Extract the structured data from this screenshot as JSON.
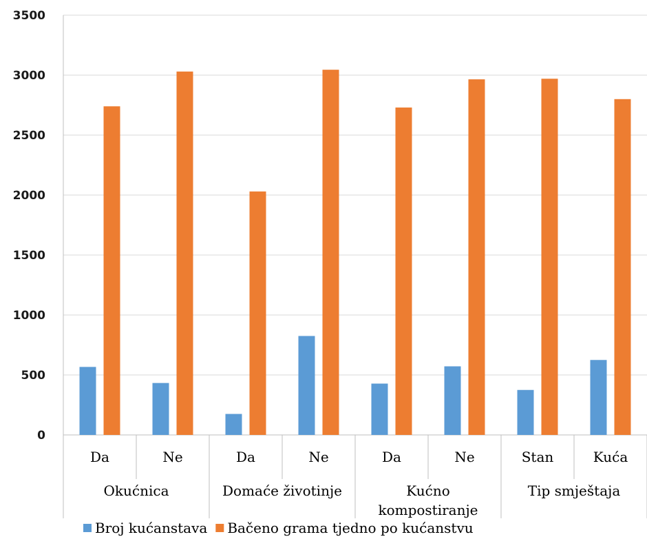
{
  "chart_data": {
    "type": "bar",
    "title": "",
    "xlabel": "",
    "ylabel": "",
    "ylim": [
      0,
      3500
    ],
    "yticks": [
      0,
      500,
      1000,
      1500,
      2000,
      2500,
      3000,
      3500
    ],
    "grid": true,
    "legend_position": "bottom",
    "categories": [
      "Da",
      "Ne",
      "Da",
      "Ne",
      "Da",
      "Ne",
      "Stan",
      "Kuća"
    ],
    "groups": [
      {
        "label": "Okućnica",
        "lines": [
          "Okućnica"
        ],
        "span": [
          0,
          1
        ]
      },
      {
        "label": "Domaće životinje",
        "lines": [
          "Domaće životinje"
        ],
        "span": [
          2,
          3
        ]
      },
      {
        "label": "Kućno kompostiranje",
        "lines": [
          "Kućno",
          "kompostiranje"
        ],
        "span": [
          4,
          5
        ]
      },
      {
        "label": "Tip smještaja",
        "lines": [
          "Tip smještaja"
        ],
        "span": [
          6,
          7
        ]
      }
    ],
    "series": [
      {
        "name": "Broj kućanstava",
        "color": "#5b9bd5",
        "values": [
          567,
          433,
          175,
          825,
          428,
          572,
          375,
          625
        ]
      },
      {
        "name": "Bačeno grama tjedno po kućanstvu",
        "color": "#ed7d31",
        "values": [
          2740,
          3030,
          2030,
          3045,
          2730,
          2965,
          2970,
          2800
        ]
      }
    ]
  }
}
